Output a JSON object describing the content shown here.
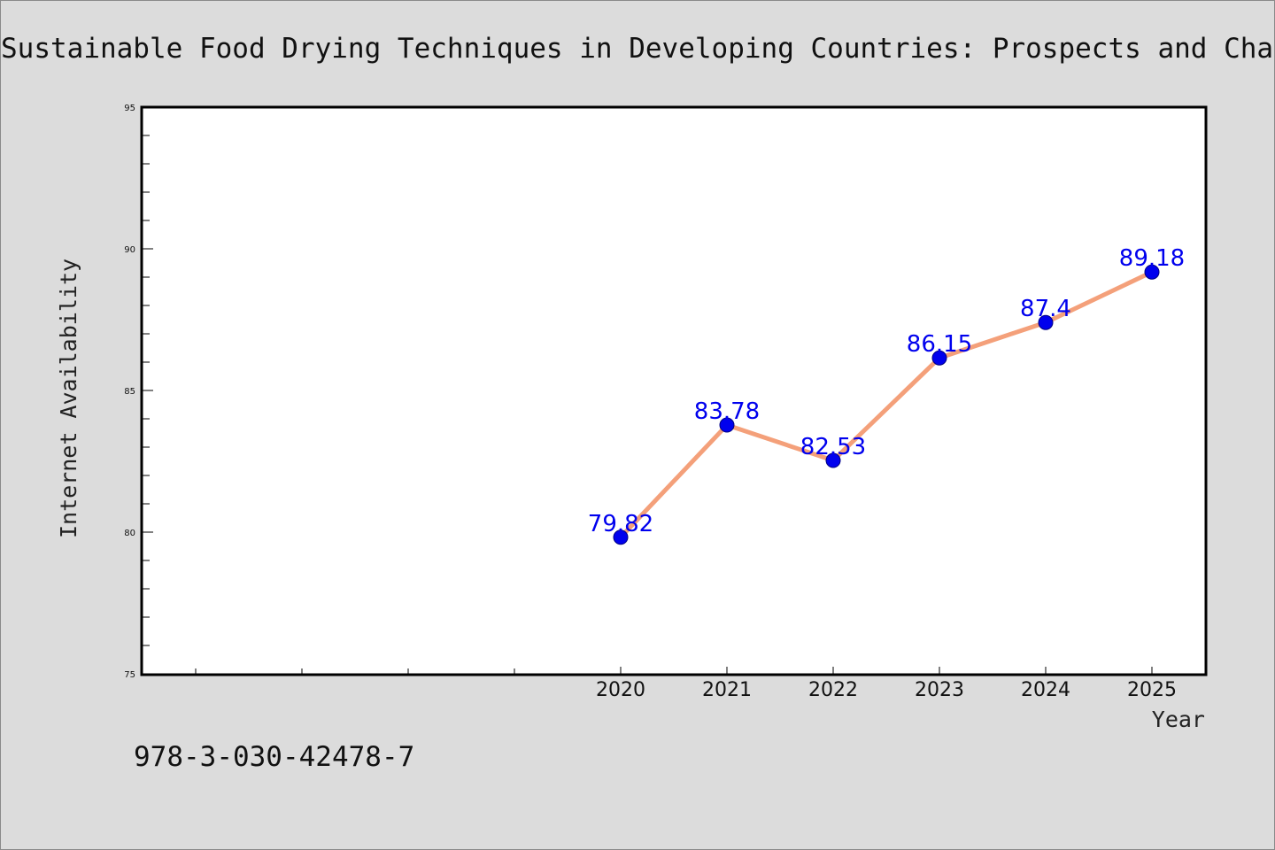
{
  "chart_data": {
    "type": "line",
    "title": "Sustainable Food Drying Techniques in Developing Countries: Prospects and Challe",
    "xlabel": "Year",
    "ylabel": "Internet Availability",
    "x": [
      2020,
      2021,
      2022,
      2023,
      2024,
      2025
    ],
    "x_tick_labels": [
      "2020",
      "2021",
      "2022",
      "2023",
      "2024",
      "2025"
    ],
    "xlim": [
      2015.5,
      2025.5
    ],
    "ylim": [
      75,
      95
    ],
    "y_ticks": [
      75,
      80,
      85,
      90,
      95
    ],
    "y_tick_labels": [
      "75",
      "80",
      "85",
      "90",
      "95"
    ],
    "series": [
      {
        "values": [
          79.82,
          83.78,
          82.53,
          86.15,
          87.4,
          89.18
        ],
        "data_labels": [
          "79.82",
          "83.78",
          "82.53",
          "86.15",
          "87.4",
          "89.18"
        ],
        "line_color": "#f4a07a",
        "marker_color": "#0000ee",
        "label_color": "#0000ee"
      }
    ],
    "grid": false,
    "legend": "none"
  },
  "footnote": "978-3-030-42478-7",
  "colors": {
    "background": "#dcdcdc",
    "plot_background": "#ffffff",
    "axis": "#000000"
  }
}
